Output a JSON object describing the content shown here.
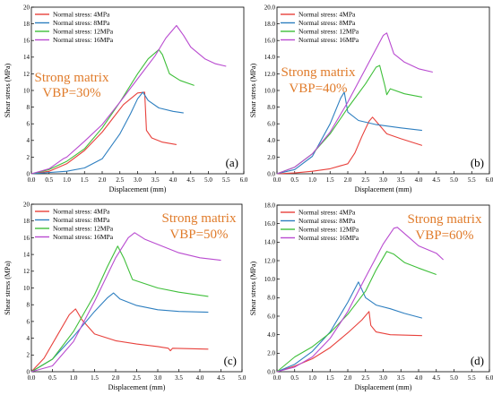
{
  "chart_data": [
    {
      "type": "line",
      "panel_label": "(a)",
      "annotation": [
        "Strong matrix",
        "VBP=30%"
      ],
      "xlabel": "Displacement (mm)",
      "ylabel": "Shear stress (MPa)",
      "xlim": [
        0,
        6
      ],
      "ylim": [
        0,
        20
      ],
      "xticks": [
        "0.0",
        "0.5",
        "1.0",
        "1.5",
        "2.0",
        "2.5",
        "3.0",
        "3.5",
        "4.0",
        "4.5",
        "5.0",
        "5.5",
        "6.0"
      ],
      "yticks": [
        "0",
        "2",
        "4",
        "6",
        "8",
        "10",
        "12",
        "14",
        "16",
        "18",
        "20"
      ],
      "legend_position": "top-left",
      "series": [
        {
          "name": "Normal stress: 4MPa",
          "color": "#e8413c",
          "points": [
            [
              0,
              0
            ],
            [
              0.5,
              0.3
            ],
            [
              1,
              1.2
            ],
            [
              1.5,
              2.8
            ],
            [
              2,
              5
            ],
            [
              2.4,
              7.2
            ],
            [
              2.6,
              8.3
            ],
            [
              2.8,
              9
            ],
            [
              3,
              9.7
            ],
            [
              3.2,
              9.8
            ],
            [
              3.25,
              5.2
            ],
            [
              3.4,
              4.3
            ],
            [
              3.7,
              3.8
            ],
            [
              4.1,
              3.5
            ]
          ]
        },
        {
          "name": "Normal stress: 8MPa",
          "color": "#2e7fc0",
          "points": [
            [
              0,
              0
            ],
            [
              1,
              0.3
            ],
            [
              1.5,
              0.7
            ],
            [
              2,
              1.8
            ],
            [
              2.5,
              4.8
            ],
            [
              2.8,
              7.2
            ],
            [
              3,
              9
            ],
            [
              3.15,
              9.8
            ],
            [
              3.3,
              8.8
            ],
            [
              3.6,
              7.9
            ],
            [
              4,
              7.5
            ],
            [
              4.3,
              7.3
            ]
          ]
        },
        {
          "name": "Normal stress: 12MPa",
          "color": "#3fbf3a",
          "points": [
            [
              0,
              0
            ],
            [
              0.5,
              0.5
            ],
            [
              1,
              1.5
            ],
            [
              1.5,
              3
            ],
            [
              2,
              5.5
            ],
            [
              2.5,
              8.6
            ],
            [
              3,
              12
            ],
            [
              3.3,
              13.8
            ],
            [
              3.6,
              14.9
            ],
            [
              3.7,
              14.3
            ],
            [
              3.9,
              12
            ],
            [
              4.2,
              11.2
            ],
            [
              4.6,
              10.6
            ]
          ]
        },
        {
          "name": "Normal stress: 16MPa",
          "color": "#b94bd0",
          "points": [
            [
              0,
              0
            ],
            [
              0.5,
              0.6
            ],
            [
              0.9,
              1.8
            ],
            [
              1,
              2
            ],
            [
              1.5,
              3.9
            ],
            [
              2,
              5.9
            ],
            [
              2.5,
              8.6
            ],
            [
              3,
              11.4
            ],
            [
              3.5,
              14.2
            ],
            [
              3.8,
              16.3
            ],
            [
              4.1,
              17.8
            ],
            [
              4.3,
              16.6
            ],
            [
              4.5,
              15.2
            ],
            [
              4.9,
              13.8
            ],
            [
              5.2,
              13.2
            ],
            [
              5.5,
              12.9
            ]
          ]
        }
      ]
    },
    {
      "type": "line",
      "panel_label": "(b)",
      "annotation": [
        "Strong matrix",
        "VBP=40%"
      ],
      "xlabel": "Displacement (mm)",
      "ylabel": "Shear stress (MPa)",
      "xlim": [
        0,
        6
      ],
      "ylim": [
        0,
        20
      ],
      "xticks": [
        "0.0",
        "0.5",
        "1.0",
        "1.5",
        "2.0",
        "2.5",
        "3.0",
        "3.5",
        "4.0",
        "4.5",
        "5.0",
        "5.5",
        "6.0"
      ],
      "yticks": [
        "0.0",
        "2.0",
        "4.0",
        "6.0",
        "8.0",
        "10.0",
        "12.0",
        "14.0",
        "16.0",
        "18.0",
        "20.0"
      ],
      "legend_position": "top-left",
      "series": [
        {
          "name": "Normal stress: 4MPa",
          "color": "#e8413c",
          "points": [
            [
              0,
              0
            ],
            [
              0.5,
              0.1
            ],
            [
              1,
              0.3
            ],
            [
              1.5,
              0.6
            ],
            [
              2,
              1.2
            ],
            [
              2.2,
              2.5
            ],
            [
              2.4,
              4.5
            ],
            [
              2.6,
              6.3
            ],
            [
              2.7,
              6.8
            ],
            [
              2.9,
              5.8
            ],
            [
              3.1,
              4.8
            ],
            [
              3.5,
              4.2
            ],
            [
              4.1,
              3.4
            ]
          ]
        },
        {
          "name": "Normal stress: 8MPa",
          "color": "#2e7fc0",
          "points": [
            [
              0,
              0
            ],
            [
              0.5,
              0.5
            ],
            [
              1,
              2.1
            ],
            [
              1.5,
              6
            ],
            [
              1.8,
              9.1
            ],
            [
              1.9,
              9.8
            ],
            [
              2,
              7.4
            ],
            [
              2.3,
              6.4
            ],
            [
              2.8,
              5.9
            ],
            [
              3.5,
              5.5
            ],
            [
              4.1,
              5.2
            ]
          ]
        },
        {
          "name": "Normal stress: 12MPa",
          "color": "#3fbf3a",
          "points": [
            [
              0,
              0
            ],
            [
              0.5,
              0.8
            ],
            [
              1,
              2.4
            ],
            [
              1.5,
              4.8
            ],
            [
              2,
              7.9
            ],
            [
              2.5,
              10.8
            ],
            [
              2.8,
              12.8
            ],
            [
              2.9,
              13
            ],
            [
              3.05,
              10.5
            ],
            [
              3.1,
              9.5
            ],
            [
              3.2,
              10.2
            ],
            [
              3.6,
              9.6
            ],
            [
              4.1,
              9.2
            ]
          ]
        },
        {
          "name": "Normal stress: 16MPa",
          "color": "#b94bd0",
          "points": [
            [
              0,
              0
            ],
            [
              0.5,
              0.8
            ],
            [
              1,
              2.4
            ],
            [
              1.5,
              5
            ],
            [
              2,
              8.6
            ],
            [
              2.5,
              12.6
            ],
            [
              3,
              16.6
            ],
            [
              3.1,
              16.9
            ],
            [
              3.3,
              14.4
            ],
            [
              3.6,
              13.4
            ],
            [
              4,
              12.6
            ],
            [
              4.4,
              12.2
            ]
          ]
        }
      ]
    },
    {
      "type": "line",
      "panel_label": "(c)",
      "annotation": [
        "Strong matrix",
        "VBP=50%"
      ],
      "xlabel": "Displacement (mm)",
      "ylabel": "Shear stress (MPa)",
      "xlim": [
        0,
        5
      ],
      "ylim": [
        0,
        20
      ],
      "xticks": [
        "0.0",
        "0.5",
        "1.0",
        "1.5",
        "2.0",
        "2.5",
        "3.0",
        "3.5",
        "4.0",
        "4.5",
        "5.0"
      ],
      "yticks": [
        "0",
        "2",
        "4",
        "6",
        "8",
        "10",
        "12",
        "14",
        "16",
        "18",
        "20"
      ],
      "legend_position": "top-left",
      "series": [
        {
          "name": "Normal stress: 4MPa",
          "color": "#e8413c",
          "points": [
            [
              0,
              0
            ],
            [
              0.3,
              1.6
            ],
            [
              0.6,
              4.2
            ],
            [
              0.9,
              6.8
            ],
            [
              1.05,
              7.5
            ],
            [
              1.2,
              6.2
            ],
            [
              1.5,
              4.5
            ],
            [
              2,
              3.7
            ],
            [
              2.5,
              3.3
            ],
            [
              3,
              3
            ],
            [
              3.25,
              2.8
            ],
            [
              3.3,
              2.5
            ],
            [
              3.35,
              2.8
            ],
            [
              4.2,
              2.7
            ]
          ]
        },
        {
          "name": "Normal stress: 8MPa",
          "color": "#2e7fc0",
          "points": [
            [
              0,
              0
            ],
            [
              0.5,
              1.5
            ],
            [
              1,
              4.2
            ],
            [
              1.5,
              7.2
            ],
            [
              1.8,
              8.8
            ],
            [
              1.95,
              9.4
            ],
            [
              2.1,
              8.7
            ],
            [
              2.5,
              7.9
            ],
            [
              3,
              7.4
            ],
            [
              3.5,
              7.2
            ],
            [
              4.2,
              7.1
            ]
          ]
        },
        {
          "name": "Normal stress: 12MPa",
          "color": "#3fbf3a",
          "points": [
            [
              0,
              0
            ],
            [
              0.5,
              1.5
            ],
            [
              1,
              4.8
            ],
            [
              1.5,
              9.2
            ],
            [
              1.8,
              12.5
            ],
            [
              2.05,
              15
            ],
            [
              2.2,
              13.5
            ],
            [
              2.4,
              11
            ],
            [
              3,
              10
            ],
            [
              3.5,
              9.5
            ],
            [
              4.2,
              9
            ]
          ]
        },
        {
          "name": "Normal stress: 16MPa",
          "color": "#b94bd0",
          "points": [
            [
              0,
              0
            ],
            [
              0.5,
              0.7
            ],
            [
              1,
              3.6
            ],
            [
              1.5,
              8.4
            ],
            [
              2,
              13.6
            ],
            [
              2.3,
              16
            ],
            [
              2.45,
              16.6
            ],
            [
              2.7,
              15.8
            ],
            [
              3,
              15.2
            ],
            [
              3.5,
              14.2
            ],
            [
              4,
              13.6
            ],
            [
              4.5,
              13.3
            ]
          ]
        }
      ]
    },
    {
      "type": "line",
      "panel_label": "(d)",
      "annotation": [
        "Strong matrix",
        "VBP=60%"
      ],
      "xlabel": "Displacement (mm)",
      "ylabel": "Shear stress (MPa)",
      "xlim": [
        0,
        6
      ],
      "ylim": [
        0,
        18
      ],
      "xticks": [
        "0.0",
        "0.5",
        "1.0",
        "1.5",
        "2.0",
        "2.5",
        "3.0",
        "3.5",
        "4.0",
        "4.5",
        "5.0",
        "5.5",
        "6.0"
      ],
      "yticks": [
        "0.0",
        "2.0",
        "4.0",
        "6.0",
        "8.0",
        "10.0",
        "12.0",
        "14.0",
        "16.0",
        "18.0"
      ],
      "legend_position": "top-left",
      "series": [
        {
          "name": "Normal stress: 4MPa",
          "color": "#e8413c",
          "points": [
            [
              0,
              0
            ],
            [
              0.5,
              0.6
            ],
            [
              1,
              1.4
            ],
            [
              1.5,
              2.6
            ],
            [
              2,
              4.2
            ],
            [
              2.4,
              5.6
            ],
            [
              2.6,
              6.5
            ],
            [
              2.65,
              5
            ],
            [
              2.8,
              4.3
            ],
            [
              3.2,
              4
            ],
            [
              4.1,
              3.9
            ]
          ]
        },
        {
          "name": "Normal stress: 8MPa",
          "color": "#2e7fc0",
          "points": [
            [
              0,
              0
            ],
            [
              0.5,
              0.8
            ],
            [
              1,
              2.2
            ],
            [
              1.5,
              4.3
            ],
            [
              2,
              7.5
            ],
            [
              2.3,
              9.7
            ],
            [
              2.5,
              8
            ],
            [
              2.8,
              7.2
            ],
            [
              3.2,
              6.8
            ],
            [
              3.6,
              6.3
            ],
            [
              4.1,
              5.8
            ]
          ]
        },
        {
          "name": "Normal stress: 12MPa",
          "color": "#3fbf3a",
          "points": [
            [
              0,
              0
            ],
            [
              0.5,
              1.6
            ],
            [
              1,
              2.7
            ],
            [
              1.5,
              4.2
            ],
            [
              2,
              6.2
            ],
            [
              2.5,
              8.7
            ],
            [
              2.8,
              11
            ],
            [
              3.1,
              13
            ],
            [
              3.3,
              12.7
            ],
            [
              3.6,
              11.8
            ],
            [
              4,
              11.2
            ],
            [
              4.5,
              10.5
            ]
          ]
        },
        {
          "name": "Normal stress: 16MPa",
          "color": "#b94bd0",
          "points": [
            [
              0,
              0
            ],
            [
              0.5,
              0.5
            ],
            [
              1,
              1.6
            ],
            [
              1.5,
              3.6
            ],
            [
              2,
              6.5
            ],
            [
              2.5,
              10.2
            ],
            [
              3,
              13.8
            ],
            [
              3.3,
              15.5
            ],
            [
              3.4,
              15.6
            ],
            [
              3.7,
              14.6
            ],
            [
              4,
              13.6
            ],
            [
              4.5,
              12.8
            ],
            [
              4.7,
              12.1
            ]
          ]
        }
      ]
    }
  ]
}
